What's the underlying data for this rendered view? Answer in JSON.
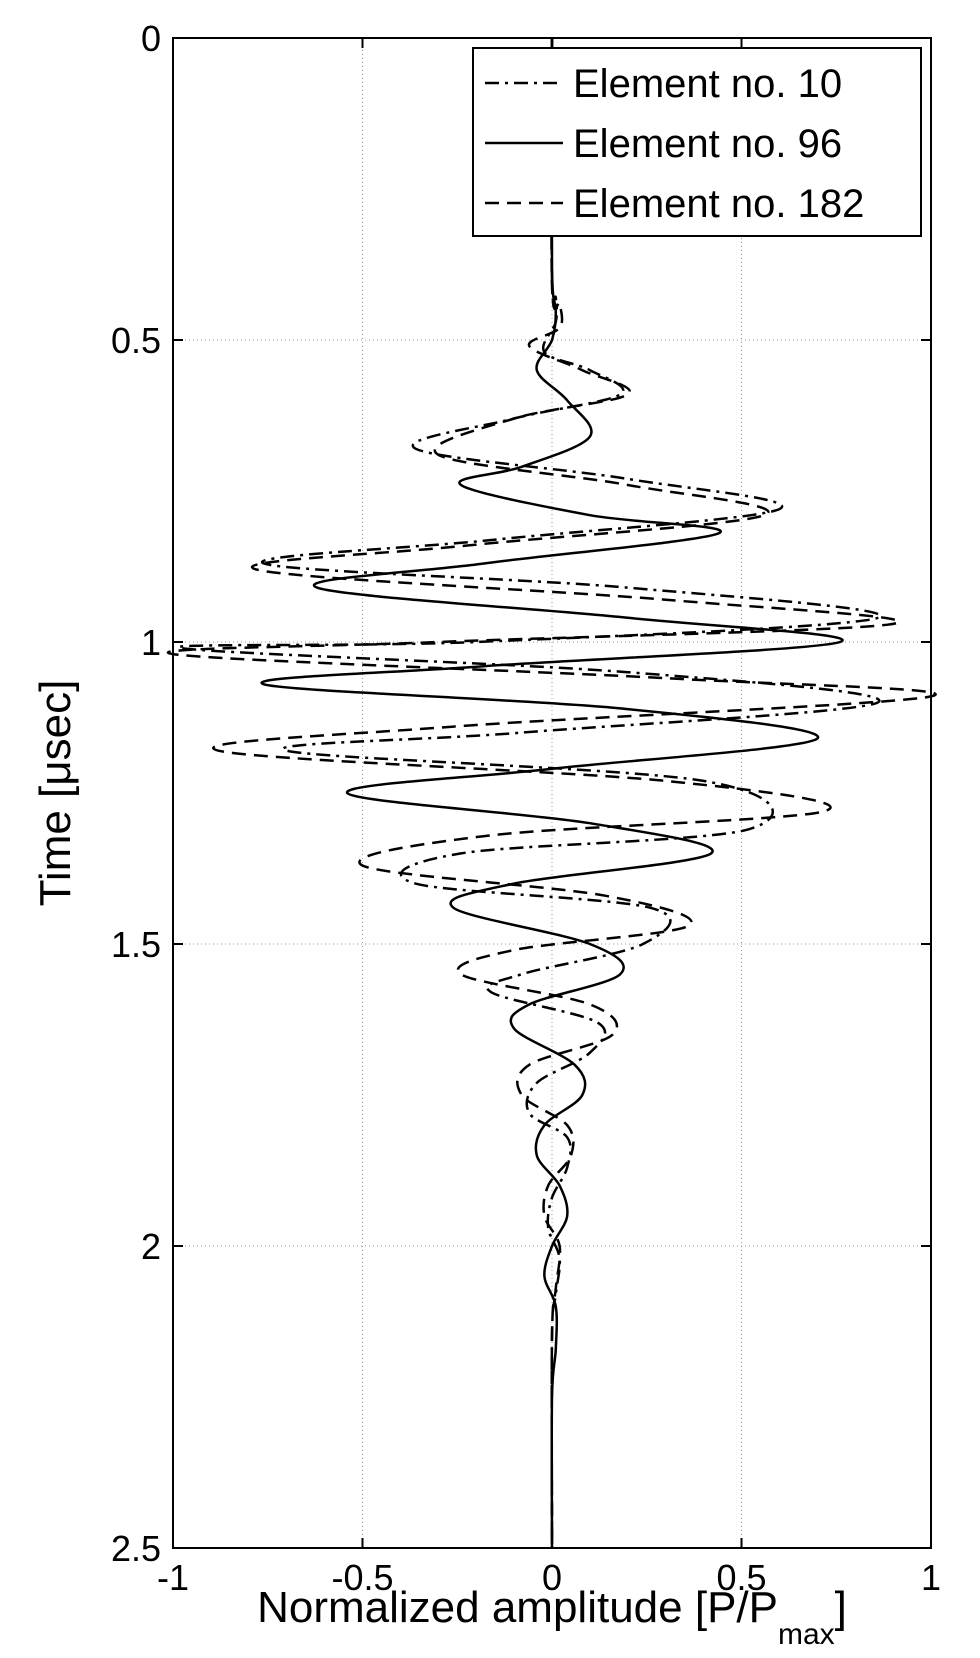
{
  "chart_data": {
    "type": "line",
    "orientation": "time-vertical",
    "title": "",
    "xlabel": "Normalized amplitude [P/P",
    "xlabel_subscript": "max",
    "xlabel_suffix": "]",
    "ylabel": "Time [μsec]",
    "xlim": [
      -1,
      1
    ],
    "ylim": [
      0,
      2.5
    ],
    "y_reversed": true,
    "xticks": [
      -1,
      -0.5,
      0,
      0.5,
      1
    ],
    "xtick_labels": [
      "-1",
      "-0.5",
      "0",
      "0.5",
      "1"
    ],
    "yticks": [
      0,
      0.5,
      1,
      1.5,
      2,
      2.5
    ],
    "ytick_labels": [
      "0",
      "0.5",
      "1",
      "1.5",
      "2",
      "2.5"
    ],
    "grid": true,
    "legend_position": "top-right",
    "series": [
      {
        "name": "Element no. 10",
        "style": "dashdot",
        "color": "#000000",
        "points": [
          [
            0.0,
            0.0
          ],
          [
            0.0,
            0.4
          ],
          [
            0.01,
            0.43
          ],
          [
            0.01,
            0.47
          ],
          [
            -0.02,
            0.52
          ],
          [
            0.1,
            0.55
          ],
          [
            0.18,
            0.59
          ],
          [
            -0.1,
            0.63
          ],
          [
            -0.36,
            0.68
          ],
          [
            0.2,
            0.73
          ],
          [
            0.6,
            0.78
          ],
          [
            -0.14,
            0.83
          ],
          [
            -0.76,
            0.87
          ],
          [
            0.2,
            0.91
          ],
          [
            0.86,
            0.96
          ],
          [
            -0.2,
            1.0
          ],
          [
            -0.98,
            1.01
          ],
          [
            0.2,
            1.05
          ],
          [
            0.86,
            1.1
          ],
          [
            -0.08,
            1.15
          ],
          [
            -0.7,
            1.18
          ],
          [
            0.4,
            1.23
          ],
          [
            0.52,
            1.31
          ],
          [
            -0.24,
            1.35
          ],
          [
            -0.36,
            1.4
          ],
          [
            0.26,
            1.44
          ],
          [
            0.24,
            1.5
          ],
          [
            -0.08,
            1.55
          ],
          [
            -0.16,
            1.58
          ],
          [
            0.12,
            1.63
          ],
          [
            0.1,
            1.68
          ],
          [
            -0.04,
            1.73
          ],
          [
            -0.06,
            1.78
          ],
          [
            0.04,
            1.82
          ],
          [
            0.04,
            1.87
          ],
          [
            0.0,
            1.92
          ],
          [
            -0.01,
            1.97
          ],
          [
            0.02,
            2.02
          ],
          [
            0.01,
            2.08
          ],
          [
            0.0,
            2.15
          ],
          [
            0.0,
            2.5
          ]
        ]
      },
      {
        "name": "Element no. 96",
        "style": "solid",
        "color": "#000000",
        "points": [
          [
            0.0,
            0.0
          ],
          [
            0.0,
            0.38
          ],
          [
            0.01,
            0.45
          ],
          [
            0.0,
            0.5
          ],
          [
            -0.04,
            0.55
          ],
          [
            0.04,
            0.6
          ],
          [
            0.1,
            0.66
          ],
          [
            -0.08,
            0.71
          ],
          [
            -0.24,
            0.74
          ],
          [
            0.1,
            0.79
          ],
          [
            0.44,
            0.82
          ],
          [
            -0.18,
            0.87
          ],
          [
            -0.62,
            0.91
          ],
          [
            0.2,
            0.96
          ],
          [
            0.76,
            1.0
          ],
          [
            -0.18,
            1.04
          ],
          [
            -0.76,
            1.07
          ],
          [
            0.18,
            1.11
          ],
          [
            0.7,
            1.16
          ],
          [
            0.0,
            1.21
          ],
          [
            -0.54,
            1.25
          ],
          [
            0.1,
            1.3
          ],
          [
            0.42,
            1.35
          ],
          [
            -0.1,
            1.4
          ],
          [
            -0.26,
            1.44
          ],
          [
            0.1,
            1.5
          ],
          [
            0.18,
            1.55
          ],
          [
            -0.06,
            1.6
          ],
          [
            -0.1,
            1.64
          ],
          [
            0.06,
            1.7
          ],
          [
            0.08,
            1.75
          ],
          [
            -0.02,
            1.8
          ],
          [
            -0.04,
            1.85
          ],
          [
            0.02,
            1.9
          ],
          [
            0.04,
            1.95
          ],
          [
            0.0,
            2.0
          ],
          [
            -0.02,
            2.05
          ],
          [
            0.01,
            2.1
          ],
          [
            0.01,
            2.17
          ],
          [
            0.0,
            2.25
          ],
          [
            0.0,
            2.5
          ]
        ]
      },
      {
        "name": "Element no. 182",
        "style": "dashed",
        "color": "#000000",
        "points": [
          [
            0.0,
            0.0
          ],
          [
            0.0,
            0.41
          ],
          [
            0.02,
            0.44
          ],
          [
            0.02,
            0.48
          ],
          [
            -0.06,
            0.51
          ],
          [
            0.08,
            0.55
          ],
          [
            0.2,
            0.59
          ],
          [
            -0.1,
            0.63
          ],
          [
            -0.3,
            0.69
          ],
          [
            0.2,
            0.74
          ],
          [
            0.56,
            0.79
          ],
          [
            -0.22,
            0.84
          ],
          [
            -0.78,
            0.88
          ],
          [
            0.3,
            0.93
          ],
          [
            0.9,
            0.97
          ],
          [
            -0.3,
            1.0
          ],
          [
            -1.0,
            1.02
          ],
          [
            0.3,
            1.06
          ],
          [
            1.0,
            1.09
          ],
          [
            -0.26,
            1.14
          ],
          [
            -0.88,
            1.18
          ],
          [
            0.3,
            1.23
          ],
          [
            0.72,
            1.28
          ],
          [
            -0.16,
            1.32
          ],
          [
            -0.5,
            1.37
          ],
          [
            0.14,
            1.42
          ],
          [
            0.36,
            1.47
          ],
          [
            -0.1,
            1.51
          ],
          [
            -0.24,
            1.55
          ],
          [
            0.1,
            1.6
          ],
          [
            0.16,
            1.65
          ],
          [
            -0.06,
            1.7
          ],
          [
            -0.08,
            1.75
          ],
          [
            0.04,
            1.8
          ],
          [
            0.05,
            1.85
          ],
          [
            -0.01,
            1.9
          ],
          [
            -0.02,
            1.95
          ],
          [
            0.02,
            2.0
          ],
          [
            0.01,
            2.07
          ],
          [
            0.0,
            2.15
          ],
          [
            0.0,
            2.5
          ]
        ]
      }
    ]
  }
}
